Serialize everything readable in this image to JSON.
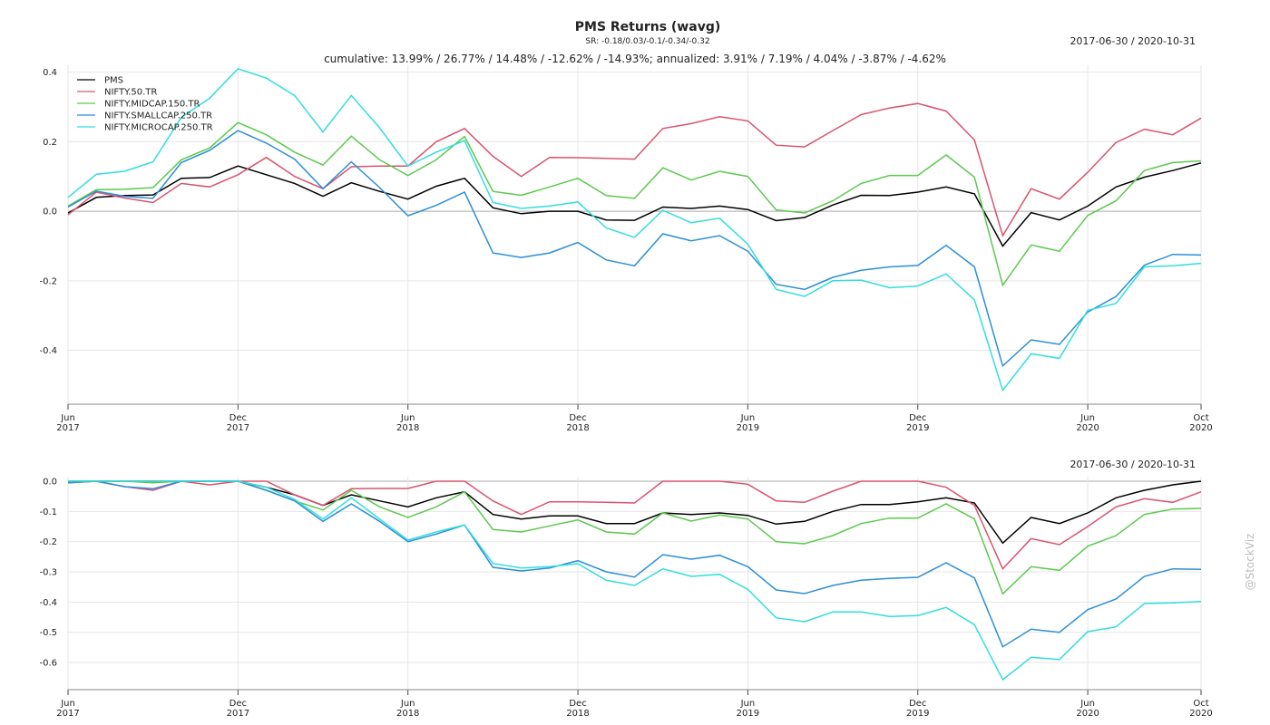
{
  "watermark": "@StockViz",
  "chart_data": [
    {
      "type": "line",
      "title": "PMS Returns (wavg)",
      "subtitle": "SR: -0.18/0.03/-0.1/-0.34/-0.32",
      "date_range": "2017-06-30 / 2020-10-31",
      "annotation": "cumulative: 13.99% / 26.77% / 14.48% / -12.62% / -14.93%; annualized: 3.91% / 7.19% / 4.04% / -3.87% / -4.62%",
      "x": [
        "2017-06",
        "2017-07",
        "2017-08",
        "2017-09",
        "2017-10",
        "2017-11",
        "2017-12",
        "2018-01",
        "2018-02",
        "2018-03",
        "2018-04",
        "2018-05",
        "2018-06",
        "2018-07",
        "2018-08",
        "2018-09",
        "2018-10",
        "2018-11",
        "2018-12",
        "2019-01",
        "2019-02",
        "2019-03",
        "2019-04",
        "2019-05",
        "2019-06",
        "2019-07",
        "2019-08",
        "2019-09",
        "2019-10",
        "2019-11",
        "2019-12",
        "2020-01",
        "2020-02",
        "2020-03",
        "2020-04",
        "2020-05",
        "2020-06",
        "2020-07",
        "2020-08",
        "2020-09",
        "2020-10"
      ],
      "xticks": [
        {
          "value": "2017-06",
          "label": "Jun 2017"
        },
        {
          "value": "2017-12",
          "label": "Dec 2017"
        },
        {
          "value": "2018-06",
          "label": "Jun 2018"
        },
        {
          "value": "2018-12",
          "label": "Dec 2018"
        },
        {
          "value": "2019-06",
          "label": "Jun 2019"
        },
        {
          "value": "2019-12",
          "label": "Dec 2019"
        },
        {
          "value": "2020-06",
          "label": "Jun 2020"
        },
        {
          "value": "2020-10",
          "label": "Oct 2020"
        }
      ],
      "ylim": [
        -0.555,
        0.42
      ],
      "yticks": [
        -0.4,
        -0.2,
        {
          "value": 0,
          "label": "0.0"
        },
        0.2,
        0.4
      ],
      "grid": true,
      "legend": "upper left",
      "series": [
        {
          "name": "PMS",
          "color": "#000000",
          "values": [
            -0.005,
            0.04,
            0.045,
            0.047,
            0.095,
            0.097,
            0.13,
            0.105,
            0.08,
            0.043,
            0.082,
            0.057,
            0.035,
            0.072,
            0.095,
            0.01,
            -0.007,
            0.0,
            0.0,
            -0.025,
            -0.026,
            0.012,
            0.008,
            0.015,
            0.005,
            -0.027,
            -0.018,
            0.018,
            0.046,
            0.045,
            0.055,
            0.07,
            0.05,
            -0.1,
            -0.004,
            -0.025,
            0.015,
            0.07,
            0.098,
            0.117,
            0.139
          ]
        },
        {
          "name": "NIFTY.50.TR",
          "color": "#d9536f",
          "values": [
            -0.01,
            0.055,
            0.038,
            0.025,
            0.08,
            0.07,
            0.105,
            0.155,
            0.1,
            0.065,
            0.128,
            0.13,
            0.13,
            0.2,
            0.238,
            0.158,
            0.1,
            0.155,
            0.154,
            0.152,
            0.15,
            0.238,
            0.252,
            0.272,
            0.26,
            0.19,
            0.185,
            0.232,
            0.278,
            0.297,
            0.31,
            0.288,
            0.205,
            -0.07,
            0.065,
            0.035,
            0.112,
            0.198,
            0.236,
            0.22,
            0.268
          ]
        },
        {
          "name": "NIFTY.MIDCAP.150.TR",
          "color": "#5cc94e",
          "values": [
            0.015,
            0.062,
            0.063,
            0.068,
            0.148,
            0.182,
            0.255,
            0.22,
            0.17,
            0.133,
            0.216,
            0.148,
            0.103,
            0.148,
            0.215,
            0.057,
            0.046,
            0.07,
            0.095,
            0.045,
            0.037,
            0.125,
            0.09,
            0.115,
            0.1,
            0.004,
            -0.005,
            0.03,
            0.08,
            0.103,
            0.103,
            0.162,
            0.098,
            -0.213,
            -0.097,
            -0.115,
            -0.012,
            0.03,
            0.117,
            0.14,
            0.145
          ]
        },
        {
          "name": "NIFTY.SMALLCAP.250.TR",
          "color": "#2b8fd6",
          "values": [
            0.012,
            0.058,
            0.043,
            0.037,
            0.14,
            0.175,
            0.232,
            0.196,
            0.15,
            0.065,
            0.142,
            0.068,
            -0.013,
            0.017,
            0.055,
            -0.12,
            -0.133,
            -0.12,
            -0.09,
            -0.14,
            -0.157,
            -0.065,
            -0.085,
            -0.07,
            -0.115,
            -0.21,
            -0.225,
            -0.19,
            -0.17,
            -0.16,
            -0.156,
            -0.098,
            -0.16,
            -0.445,
            -0.37,
            -0.383,
            -0.29,
            -0.245,
            -0.155,
            -0.124,
            -0.126
          ]
        },
        {
          "name": "NIFTY.MICROCAP.250.TR",
          "color": "#33dddd",
          "values": [
            0.04,
            0.106,
            0.115,
            0.142,
            0.27,
            0.325,
            0.41,
            0.383,
            0.333,
            0.228,
            0.333,
            0.24,
            0.13,
            0.17,
            0.203,
            0.025,
            0.008,
            0.015,
            0.027,
            -0.048,
            -0.075,
            0.003,
            -0.033,
            -0.02,
            -0.095,
            -0.225,
            -0.245,
            -0.2,
            -0.198,
            -0.22,
            -0.215,
            -0.18,
            -0.255,
            -0.515,
            -0.41,
            -0.423,
            -0.285,
            -0.265,
            -0.16,
            -0.157,
            -0.15
          ]
        }
      ]
    },
    {
      "type": "line",
      "date_range": "2017-06-30 / 2020-10-31",
      "x": [
        "2017-06",
        "2017-07",
        "2017-08",
        "2017-09",
        "2017-10",
        "2017-11",
        "2017-12",
        "2018-01",
        "2018-02",
        "2018-03",
        "2018-04",
        "2018-05",
        "2018-06",
        "2018-07",
        "2018-08",
        "2018-09",
        "2018-10",
        "2018-11",
        "2018-12",
        "2019-01",
        "2019-02",
        "2019-03",
        "2019-04",
        "2019-05",
        "2019-06",
        "2019-07",
        "2019-08",
        "2019-09",
        "2019-10",
        "2019-11",
        "2019-12",
        "2020-01",
        "2020-02",
        "2020-03",
        "2020-04",
        "2020-05",
        "2020-06",
        "2020-07",
        "2020-08",
        "2020-09",
        "2020-10"
      ],
      "xticks": [
        {
          "value": "2017-06",
          "label": "Jun 2017"
        },
        {
          "value": "2017-12",
          "label": "Dec 2017"
        },
        {
          "value": "2018-06",
          "label": "Jun 2018"
        },
        {
          "value": "2018-12",
          "label": "Dec 2018"
        },
        {
          "value": "2019-06",
          "label": "Jun 2019"
        },
        {
          "value": "2019-12",
          "label": "Dec 2019"
        },
        {
          "value": "2020-06",
          "label": "Jun 2020"
        },
        {
          "value": "2020-10",
          "label": "Oct 2020"
        }
      ],
      "ylim": [
        -0.69,
        0.015
      ],
      "yticks": [
        -0.6,
        -0.5,
        -0.4,
        -0.3,
        -0.2,
        -0.1,
        {
          "value": 0,
          "label": "0.0"
        }
      ],
      "grid": true,
      "series": [
        {
          "name": "PMS",
          "color": "#000000",
          "values": [
            0,
            0,
            0,
            0,
            0,
            0,
            0,
            -0.02,
            -0.045,
            -0.08,
            -0.045,
            -0.065,
            -0.085,
            -0.055,
            -0.035,
            -0.11,
            -0.125,
            -0.115,
            -0.115,
            -0.14,
            -0.14,
            -0.105,
            -0.11,
            -0.105,
            -0.113,
            -0.142,
            -0.133,
            -0.1,
            -0.077,
            -0.077,
            -0.068,
            -0.055,
            -0.072,
            -0.205,
            -0.12,
            -0.14,
            -0.105,
            -0.055,
            -0.03,
            -0.012,
            0
          ]
        },
        {
          "name": "NIFTY.50.TR",
          "color": "#d9536f",
          "values": [
            -0.005,
            0,
            -0.018,
            -0.03,
            0,
            -0.012,
            0,
            0,
            -0.045,
            -0.08,
            -0.025,
            -0.024,
            -0.024,
            0,
            0,
            -0.065,
            -0.11,
            -0.068,
            -0.068,
            -0.07,
            -0.072,
            0,
            0,
            0,
            -0.01,
            -0.065,
            -0.07,
            -0.033,
            0,
            0,
            0,
            -0.02,
            -0.08,
            -0.29,
            -0.19,
            -0.21,
            -0.15,
            -0.085,
            -0.058,
            -0.07,
            -0.035
          ]
        },
        {
          "name": "NIFTY.MIDCAP.150.TR",
          "color": "#5cc94e",
          "values": [
            0,
            0,
            0,
            -0.005,
            0,
            0,
            0,
            -0.03,
            -0.065,
            -0.095,
            -0.03,
            -0.085,
            -0.12,
            -0.085,
            -0.035,
            -0.16,
            -0.168,
            -0.148,
            -0.128,
            -0.168,
            -0.175,
            -0.105,
            -0.132,
            -0.112,
            -0.125,
            -0.2,
            -0.207,
            -0.18,
            -0.14,
            -0.122,
            -0.122,
            -0.075,
            -0.125,
            -0.373,
            -0.283,
            -0.295,
            -0.215,
            -0.18,
            -0.11,
            -0.092,
            -0.09
          ]
        },
        {
          "name": "NIFTY.SMALLCAP.250.TR",
          "color": "#2b8fd6",
          "values": [
            -0.005,
            0,
            -0.018,
            -0.025,
            0,
            0,
            0,
            -0.03,
            -0.065,
            -0.133,
            -0.075,
            -0.133,
            -0.2,
            -0.175,
            -0.145,
            -0.285,
            -0.297,
            -0.287,
            -0.263,
            -0.3,
            -0.317,
            -0.243,
            -0.258,
            -0.245,
            -0.283,
            -0.36,
            -0.372,
            -0.345,
            -0.328,
            -0.322,
            -0.318,
            -0.27,
            -0.32,
            -0.548,
            -0.49,
            -0.5,
            -0.425,
            -0.39,
            -0.315,
            -0.29,
            -0.292
          ]
        },
        {
          "name": "NIFTY.MICROCAP.250.TR",
          "color": "#33dddd",
          "values": [
            0,
            0,
            0,
            0,
            0,
            0,
            0,
            -0.02,
            -0.06,
            -0.125,
            -0.055,
            -0.125,
            -0.195,
            -0.168,
            -0.145,
            -0.272,
            -0.287,
            -0.283,
            -0.273,
            -0.328,
            -0.345,
            -0.29,
            -0.315,
            -0.308,
            -0.358,
            -0.452,
            -0.465,
            -0.433,
            -0.433,
            -0.448,
            -0.445,
            -0.418,
            -0.475,
            -0.657,
            -0.583,
            -0.59,
            -0.498,
            -0.482,
            -0.405,
            -0.403,
            -0.398
          ]
        }
      ]
    }
  ]
}
